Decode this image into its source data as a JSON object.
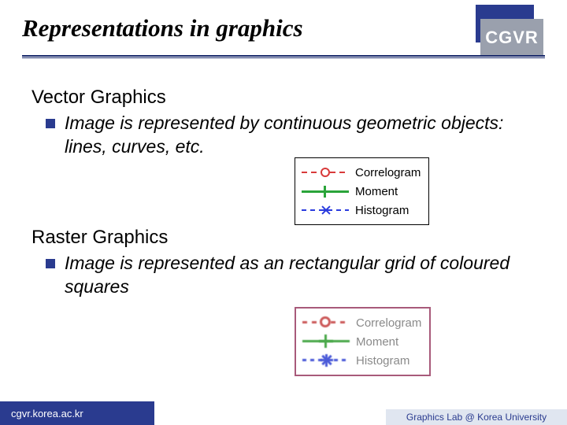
{
  "header": {
    "title": "Representations in graphics",
    "brand": "CGVR"
  },
  "sections": [
    {
      "title": "Vector Graphics",
      "bullet": "Image is represented by continuous geometric objects: lines, curves, etc."
    },
    {
      "title": "Raster Graphics",
      "bullet": "Image is represented as an rectangular grid of coloured squares"
    }
  ],
  "legend": {
    "items": [
      {
        "label": "Correlogram",
        "color": "#d83a3a",
        "marker": "circle",
        "dash": true
      },
      {
        "label": "Moment",
        "color": "#2aa43a",
        "marker": "plus",
        "dash": false
      },
      {
        "label": "Histogram",
        "color": "#2a3bdf",
        "marker": "star",
        "dash": true
      }
    ],
    "raster_colors": {
      "correlogram": "#cc5a5a",
      "moment": "#4aa84a",
      "histogram": "#4a5ad8"
    }
  },
  "footer": {
    "left": "cgvr.korea.ac.kr",
    "right": "Graphics Lab @ Korea University"
  },
  "colors": {
    "accent": "#2a3b8f",
    "brand_gray": "#9aa0ad",
    "footer_right_bg": "#e0e6f0"
  }
}
